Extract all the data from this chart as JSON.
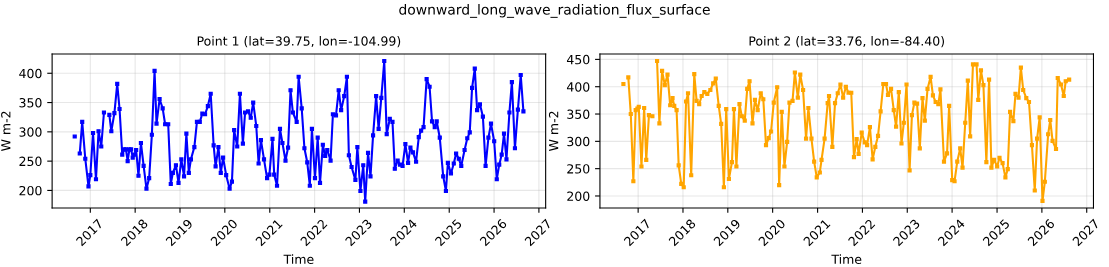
{
  "chart_data": [
    {
      "type": "line",
      "title": "Point 1 (lat=39.75, lon=-104.99)",
      "xlabel": "Time",
      "ylabel": "W m-2",
      "annotations": [
        "downward_long_wave_radiation_flux_surface"
      ],
      "series": [
        {
          "color": "#0000ff",
          "x": [
            "2016-08-27",
            "2016-09-20",
            "2016-10-07",
            "2016-10-27",
            "2016-11-21",
            "2016-12-17",
            "2017-01-01",
            "2017-01-23",
            "2017-02-16",
            "2017-03-09",
            "2017-03-31",
            "2017-04-22",
            "2017-05-15",
            "2017-06-05",
            "2017-06-21",
            "2017-07-16",
            "2017-08-08",
            "2017-08-27",
            "2017-09-18",
            "2017-10-04",
            "2017-10-18",
            "2017-11-01",
            "2017-11-15",
            "2017-11-29",
            "2017-12-12",
            "2017-12-26",
            "2018-01-09",
            "2018-01-28",
            "2018-02-17",
            "2018-03-11",
            "2018-04-03",
            "2018-04-25",
            "2018-05-17",
            "2018-06-08",
            "2018-06-24",
            "2018-07-19",
            "2018-08-13",
            "2018-09-02",
            "2018-09-27",
            "2018-10-18",
            "2018-11-04",
            "2018-11-29",
            "2018-12-20",
            "2019-01-12",
            "2019-02-03",
            "2019-02-22",
            "2019-03-14",
            "2019-03-31",
            "2019-04-28",
            "2019-05-19",
            "2019-06-11",
            "2019-07-02",
            "2019-07-24",
            "2019-08-16",
            "2019-09-08",
            "2019-10-02",
            "2019-10-18",
            "2019-11-10",
            "2019-11-29",
            "2019-12-18",
            "2020-01-12",
            "2020-02-09",
            "2020-02-28",
            "2020-03-17",
            "2020-04-11",
            "2020-05-03",
            "2020-05-27",
            "2020-06-14",
            "2020-07-08",
            "2020-07-30",
            "2020-08-19",
            "2020-09-13",
            "2020-10-02",
            "2020-10-21",
            "2020-11-15",
            "2020-12-10",
            "2020-12-29",
            "2021-01-23",
            "2021-02-06",
            "2021-03-01",
            "2021-03-25",
            "2021-04-14",
            "2021-05-09",
            "2021-05-30",
            "2021-06-19",
            "2021-07-08",
            "2021-08-08",
            "2021-08-24",
            "2021-09-18",
            "2021-10-10",
            "2021-11-02",
            "2021-11-23",
            "2021-12-10",
            "2022-01-04",
            "2022-01-26",
            "2022-02-14",
            "2022-03-09",
            "2022-03-28",
            "2022-04-14",
            "2022-05-11",
            "2022-05-30",
            "2022-06-24",
            "2022-07-16",
            "2022-08-05",
            "2022-08-30",
            "2022-09-21",
            "2022-10-07",
            "2022-10-29",
            "2022-11-29",
            "2022-12-15",
            "2023-01-09",
            "2023-02-01",
            "2023-02-17",
            "2023-03-12",
            "2023-04-01",
            "2023-04-22",
            "2023-05-17",
            "2023-06-06",
            "2023-06-28",
            "2023-07-22",
            "2023-08-11",
            "2023-09-05",
            "2023-09-27",
            "2023-10-16",
            "2023-11-08",
            "2023-11-27",
            "2023-12-18",
            "2024-01-10",
            "2024-02-01",
            "2024-02-20",
            "2024-03-12",
            "2024-04-06",
            "2024-04-28",
            "2024-05-17",
            "2024-06-06",
            "2024-07-01",
            "2024-07-25",
            "2024-08-14",
            "2024-09-05",
            "2024-09-21",
            "2024-10-16",
            "2024-11-13",
            "2024-12-05",
            "2024-12-21",
            "2025-01-15",
            "2025-02-07",
            "2025-02-26",
            "2025-03-20",
            "2025-04-09",
            "2025-05-06",
            "2025-05-28",
            "2025-06-17",
            "2025-07-06",
            "2025-07-28",
            "2025-08-16",
            "2025-09-08",
            "2025-10-02",
            "2025-10-24",
            "2025-11-16",
            "2025-12-07",
            "2026-01-02",
            "2026-01-23",
            "2026-02-12",
            "2026-03-04",
            "2026-03-23",
            "2026-04-12",
            "2026-05-06",
            "2026-05-26",
            "2026-06-20",
            "2026-07-14",
            "2026-08-06",
            "2026-08-28"
          ],
          "values": [
            292,
            null,
            263,
            317,
            254,
            207,
            226,
            298,
            219,
            301,
            275,
            333,
            null,
            329,
            301,
            332,
            382,
            339,
            261,
            270,
            270,
            250,
            270,
            270,
            256,
            261,
            269,
            225,
            281,
            242,
            203,
            221,
            295,
            404,
            314,
            356,
            340,
            313,
            313,
            211,
            230,
            243,
            213,
            253,
            224,
            297,
            230,
            253,
            274,
            317,
            317,
            331,
            330,
            344,
            365,
            277,
            241,
            274,
            230,
            256,
            226,
            203,
            215,
            303,
            275,
            365,
            280,
            333,
            335,
            324,
            350,
            310,
            246,
            286,
            253,
            221,
            227,
            288,
            227,
            208,
            305,
            281,
            251,
            273,
            371,
            333,
            317,
            394,
            340,
            272,
            248,
            208,
            305,
            221,
            290,
            213,
            278,
            259,
            269,
            251,
            330,
            328,
            371,
            337,
            361,
            394,
            260,
            240,
            218,
            274,
            199,
            243,
            181,
            264,
            224,
            294,
            361,
            305,
            358,
            421,
            296,
            322,
            317,
            237,
            251,
            244,
            242,
            279,
            247,
            273,
            265,
            249,
            291,
            302,
            308,
            390,
            377,
            318,
            308,
            318,
            290,
            224,
            199,
            247,
            229,
            246,
            263,
            254,
            242,
            269,
            289,
            299,
            375,
            408,
            337,
            347,
            326,
            242,
            290,
            314,
            284,
            219,
            244,
            261,
            297,
            253,
            333,
            385,
            272,
            338,
            397,
            335
          ]
        }
      ],
      "xlim": [
        "2016-02-25",
        "2027-02-25"
      ],
      "ylim": [
        170,
        433
      ],
      "xticks": [
        "2017",
        "2018",
        "2019",
        "2020",
        "2021",
        "2022",
        "2023",
        "2024",
        "2025",
        "2026",
        "2027"
      ],
      "yticks": [
        200,
        250,
        300,
        350,
        400
      ],
      "grid": true,
      "marker": "square",
      "line_style": "solid",
      "legend": false
    },
    {
      "type": "line",
      "title": "Point 2 (lat=33.76, lon=-84.40)",
      "xlabel": "Time",
      "ylabel": "W m-2",
      "series": [
        {
          "color": "#ffa500",
          "x": [
            "2016-09-03",
            "2016-09-25",
            "2016-10-13",
            "2016-11-02",
            "2016-11-23",
            "2016-12-12",
            "2016-12-26",
            "2017-01-06",
            "2017-01-28",
            "2017-02-19",
            "2017-03-08",
            "2017-03-30",
            "2017-04-27",
            "2017-05-20",
            "2017-06-04",
            "2017-06-23",
            "2017-07-15",
            "2017-08-06",
            "2017-08-28",
            "2017-09-19",
            "2017-10-08",
            "2017-10-22",
            "2017-11-10",
            "2017-11-27",
            "2017-12-18",
            "2018-01-07",
            "2018-01-26",
            "2018-02-11",
            "2018-03-09",
            "2018-04-03",
            "2018-04-22",
            "2018-05-13",
            "2018-06-02",
            "2018-06-24",
            "2018-07-18",
            "2018-08-12",
            "2018-09-04",
            "2018-09-25",
            "2018-10-19",
            "2018-11-08",
            "2018-11-30",
            "2018-12-19",
            "2019-01-10",
            "2019-02-04",
            "2019-02-20",
            "2019-03-12",
            "2019-04-06",
            "2019-04-25",
            "2019-05-19",
            "2019-06-08",
            "2019-06-27",
            "2019-07-21",
            "2019-08-10",
            "2019-09-01",
            "2019-09-26",
            "2019-10-17",
            "2019-11-08",
            "2019-11-30",
            "2019-12-19",
            "2020-01-10",
            "2020-02-07",
            "2020-02-23",
            "2020-03-15",
            "2020-04-06",
            "2020-04-28",
            "2020-05-17",
            "2020-06-11",
            "2020-06-30",
            "2020-07-24",
            "2020-08-13",
            "2020-09-05",
            "2020-09-29",
            "2020-10-18",
            "2020-11-12",
            "2020-12-04",
            "2020-12-25",
            "2021-01-19",
            "2021-02-02",
            "2021-02-27",
            "2021-03-24",
            "2021-04-04",
            "2021-05-01",
            "2021-05-23",
            "2021-06-14",
            "2021-07-06",
            "2021-07-28",
            "2021-08-19",
            "2021-09-10",
            "2021-10-02",
            "2021-10-24",
            "2021-11-15",
            "2021-12-01",
            "2021-12-26",
            "2022-01-20",
            "2022-02-08",
            "2022-03-03",
            "2022-03-25",
            "2022-04-16",
            "2022-05-08",
            "2022-05-29",
            "2022-06-20",
            "2022-07-12",
            "2022-07-28",
            "2022-08-22",
            "2022-09-13",
            "2022-10-02",
            "2022-10-24",
            "2022-11-15",
            "2022-12-04",
            "2022-12-26",
            "2023-01-20",
            "2023-02-08",
            "2023-02-28",
            "2023-03-22",
            "2023-04-13",
            "2023-05-05",
            "2023-05-24",
            "2023-06-15",
            "2023-07-10",
            "2023-07-29",
            "2023-08-20",
            "2023-09-11",
            "2023-09-28",
            "2023-10-27",
            "2023-11-21",
            "2023-12-08",
            "2024-01-02",
            "2024-01-21",
            "2024-02-12",
            "2024-03-07",
            "2024-03-26",
            "2024-04-17",
            "2024-05-08",
            "2024-05-27",
            "2024-06-19",
            "2024-07-18",
            "2024-08-01",
            "2024-08-23",
            "2024-09-12",
            "2024-10-06",
            "2024-10-28",
            "2024-11-16",
            "2024-12-08",
            "2025-01-02",
            "2025-01-21",
            "2025-02-15",
            "2025-03-10",
            "2025-03-29",
            "2025-04-17",
            "2025-05-14",
            "2025-05-31",
            "2025-06-25",
            "2025-07-14",
            "2025-08-02",
            "2025-08-27",
            "2025-09-18",
            "2025-10-12",
            "2025-11-04",
            "2025-11-23",
            "2025-12-14",
            "2026-01-06",
            "2026-01-25",
            "2026-02-21",
            "2026-03-10",
            "2026-03-29",
            "2026-04-26",
            "2026-05-10",
            "2026-06-06",
            "2026-06-28",
            "2026-07-14",
            "2026-08-11"
          ],
          "values": [
            405,
            null,
            417,
            350,
            227,
            357,
            360,
            363,
            254,
            361,
            266,
            348,
            346,
            null,
            447,
            333,
            429,
            403,
            422,
            366,
            379,
            365,
            357,
            256,
            222,
            216,
            373,
            388,
            238,
            423,
            374,
            368,
            383,
            390,
            387,
            394,
            406,
            415,
            365,
            332,
            216,
            359,
            231,
            262,
            359,
            254,
            368,
            346,
            338,
            396,
            410,
            333,
            376,
            357,
            388,
            377,
            293,
            306,
            318,
            371,
            399,
            220,
            354,
            254,
            299,
            371,
            374,
            426,
            380,
            422,
            394,
            305,
            361,
            305,
            263,
            234,
            243,
            266,
            305,
            370,
            383,
            290,
            370,
            388,
            404,
            380,
            400,
            389,
            389,
            271,
            304,
            277,
            316,
            298,
            293,
            326,
            267,
            290,
            310,
            355,
            405,
            405,
            385,
            396,
            357,
            327,
            390,
            296,
            334,
            404,
            247,
            348,
            371,
            369,
            287,
            379,
            338,
            396,
            418,
            384,
            372,
            368,
            395,
            263,
            278,
            365,
            229,
            227,
            263,
            287,
            252,
            334,
            411,
            309,
            441,
            441,
            376,
            430,
            403,
            262,
            413,
            252,
            266,
            254,
            270,
            260,
            234,
            249,
            354,
            337,
            387,
            380,
            435,
            394,
            379,
            372,
            293,
            210,
            305,
            344,
            191,
            226,
            313,
            339,
            301,
            286,
            416,
            404,
            383,
            410,
            413
          ]
        }
      ],
      "xlim": [
        "2016-02-25",
        "2027-02-25"
      ],
      "ylim": [
        178,
        460
      ],
      "xticks": [
        "2017",
        "2018",
        "2019",
        "2020",
        "2021",
        "2022",
        "2023",
        "2024",
        "2025",
        "2026",
        "2027"
      ],
      "yticks": [
        200,
        250,
        300,
        350,
        400,
        450
      ],
      "grid": true,
      "marker": "square",
      "line_style": "solid",
      "legend": false
    }
  ]
}
